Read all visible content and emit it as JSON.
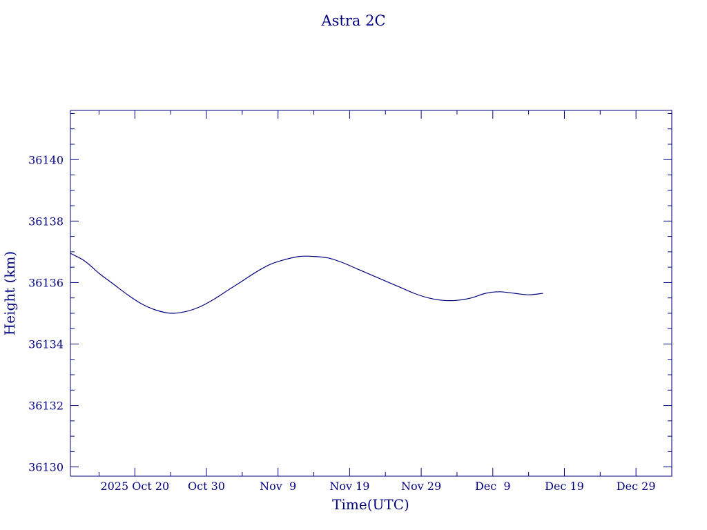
{
  "chart_data": {
    "type": "line",
    "title": "Astra 2C",
    "xlabel": "Time(UTC)",
    "ylabel": "Height (km)",
    "color": "#00007f",
    "background": "#ffffff",
    "xlim": [
      "2025-10-11",
      "2026-01-03"
    ],
    "ylim": [
      36129.7,
      36141.6
    ],
    "grid": false,
    "x_tick_labels": [
      {
        "date": "2025-10-20",
        "label": "2025 Oct 20"
      },
      {
        "date": "2025-10-30",
        "label": "Oct 30"
      },
      {
        "date": "2025-11-09",
        "label": "Nov  9"
      },
      {
        "date": "2025-11-19",
        "label": "Nov 19"
      },
      {
        "date": "2025-11-29",
        "label": "Nov 29"
      },
      {
        "date": "2025-12-09",
        "label": "Dec  9"
      },
      {
        "date": "2025-12-19",
        "label": "Dec 19"
      },
      {
        "date": "2025-12-29",
        "label": "Dec 29"
      }
    ],
    "y_ticks": [
      36130,
      36132,
      36134,
      36136,
      36138,
      36140
    ],
    "series": [
      {
        "x": [
          "2025-10-11",
          "2025-10-13",
          "2025-10-15",
          "2025-10-17",
          "2025-10-19",
          "2025-10-21",
          "2025-10-23",
          "2025-10-25",
          "2025-10-27",
          "2025-10-29",
          "2025-10-31",
          "2025-11-02",
          "2025-11-04",
          "2025-11-06",
          "2025-11-08",
          "2025-11-10",
          "2025-11-12",
          "2025-11-14",
          "2025-11-16",
          "2025-11-18",
          "2025-11-20",
          "2025-11-22",
          "2025-11-24",
          "2025-11-26",
          "2025-11-28",
          "2025-11-30",
          "2025-12-02",
          "2025-12-04",
          "2025-12-06",
          "2025-12-08",
          "2025-12-10",
          "2025-12-12",
          "2025-12-14",
          "2025-12-16"
        ],
        "y": [
          36136.95,
          36136.7,
          36136.3,
          36135.95,
          36135.6,
          36135.3,
          36135.1,
          36135.0,
          36135.05,
          36135.2,
          36135.45,
          36135.75,
          36136.05,
          36136.35,
          36136.6,
          36136.75,
          36136.85,
          36136.85,
          36136.8,
          36136.65,
          36136.45,
          36136.25,
          36136.05,
          36135.85,
          36135.65,
          36135.5,
          36135.42,
          36135.42,
          36135.5,
          36135.65,
          36135.7,
          36135.65,
          36135.6,
          36135.65
        ]
      }
    ]
  }
}
